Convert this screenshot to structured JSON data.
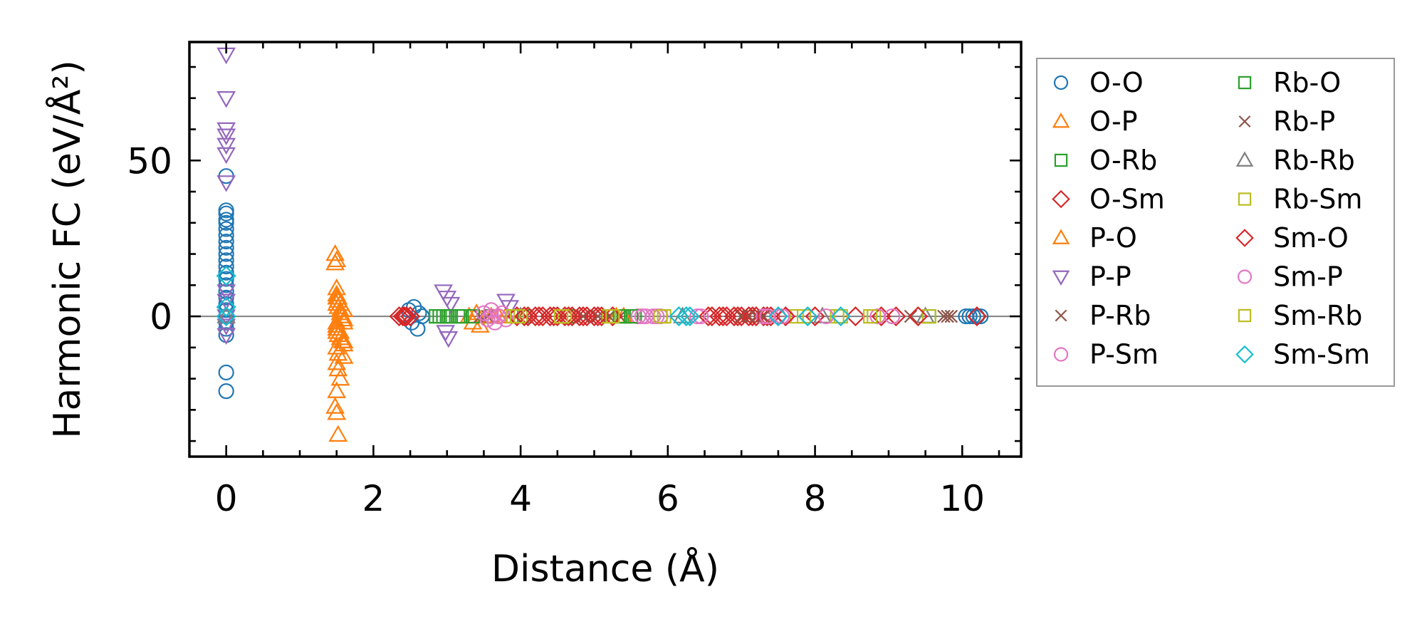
{
  "chart_data": {
    "type": "scatter",
    "title": "",
    "xlabel": "Distance (Å)",
    "ylabel": "Harmonic FC (eV/Å²)",
    "xlim": [
      -0.5,
      10.8
    ],
    "ylim": [
      -45,
      88
    ],
    "xticks": [
      0,
      2,
      4,
      6,
      8,
      10
    ],
    "yticks": [
      0,
      50
    ],
    "xtick_labels": [
      "0",
      "2",
      "4",
      "6",
      "8",
      "10"
    ],
    "ytick_labels": [
      "0",
      "50"
    ],
    "zero_line": true,
    "grid": false,
    "legend_position": "outside-right",
    "series": [
      {
        "name": "O-O",
        "marker": "circle",
        "color": "#1f77b4",
        "x": [
          0,
          0,
          0,
          0,
          0,
          0,
          0,
          0,
          0,
          0,
          0,
          0,
          0,
          0,
          0,
          0,
          0,
          0,
          0,
          0,
          0,
          0,
          0,
          0,
          0,
          2.48,
          2.52,
          2.55,
          2.6,
          2.62,
          2.66,
          10.05,
          10.1,
          10.15,
          10.2,
          10.25
        ],
        "y": [
          45,
          34,
          33,
          31,
          30,
          28,
          26,
          24,
          22,
          20,
          18,
          16,
          14,
          12,
          10,
          8,
          6,
          4,
          2,
          0,
          -2,
          -4,
          -6,
          -18,
          -24,
          2,
          -2,
          3,
          -4,
          1,
          0,
          0,
          0,
          0,
          0,
          0
        ]
      },
      {
        "name": "O-P",
        "marker": "triangle-up",
        "color": "#ff7f0e",
        "x": [
          1.48,
          1.48,
          1.5,
          1.5,
          1.52,
          1.52,
          1.5,
          1.52,
          1.55,
          1.55,
          1.58,
          1.6,
          1.6,
          1.5,
          1.5,
          1.5,
          1.52,
          1.55,
          1.58,
          1.6,
          1.5,
          1.52,
          1.5,
          1.52,
          1.55,
          1.6,
          1.5,
          1.48,
          1.5,
          1.52,
          3.3,
          3.35,
          3.4,
          3.45
        ],
        "y": [
          20,
          17,
          9,
          7,
          6,
          5,
          4,
          3,
          2,
          1,
          0,
          -1,
          -2,
          -3,
          -4,
          -5,
          -6,
          -7,
          -8,
          -9,
          -10,
          -12,
          -15,
          -17,
          -20,
          -13,
          -24,
          -29,
          -31,
          -38,
          0,
          -2,
          1,
          -3
        ]
      },
      {
        "name": "O-Rb",
        "marker": "square",
        "color": "#2ca02c",
        "x": [
          2.85,
          2.95,
          3.05,
          3.2,
          3.35,
          3.6,
          4.05,
          4.65,
          5.4,
          5.55,
          9.55
        ],
        "y": [
          0,
          0,
          0,
          0,
          0,
          0,
          0,
          0,
          0,
          0,
          0
        ]
      },
      {
        "name": "O-Sm",
        "marker": "diamond",
        "color": "#d62728",
        "x": [
          2.35,
          2.42,
          2.5,
          4.1,
          4.2,
          4.3,
          4.4,
          4.5,
          4.6,
          4.7,
          4.8,
          4.9,
          5.0,
          5.1,
          6.6,
          6.7,
          6.8,
          6.9,
          7.0,
          7.1,
          7.2,
          7.3,
          7.4
        ],
        "y": [
          0,
          0,
          0,
          0,
          0,
          0,
          0,
          0,
          0,
          0,
          0,
          0,
          0,
          0,
          0,
          0,
          0,
          0,
          0,
          0,
          0,
          0,
          0
        ]
      },
      {
        "name": "P-O",
        "marker": "triangle-up",
        "color": "#ff7f0e",
        "x": [
          1.5,
          1.5,
          1.55,
          1.6,
          1.5,
          1.55,
          1.6,
          3.6,
          3.7,
          3.8,
          5.3,
          5.4
        ],
        "y": [
          18,
          6,
          4,
          2,
          -2,
          -5,
          -8,
          0,
          0,
          0,
          0,
          0
        ]
      },
      {
        "name": "P-P",
        "marker": "triangle-down",
        "color": "#9467bd",
        "x": [
          0,
          0,
          0,
          0,
          0,
          0,
          0,
          0,
          0,
          0,
          0,
          0,
          2.95,
          3.0,
          3.05,
          2.98,
          3.02,
          3.8,
          3.85
        ],
        "y": [
          84,
          70,
          60,
          58,
          55,
          52,
          43,
          0,
          5,
          8,
          -3,
          -6,
          8,
          6,
          4,
          -5,
          -7,
          5,
          3
        ]
      },
      {
        "name": "P-Rb",
        "marker": "x",
        "color": "#8c564b",
        "x": [
          3.45,
          3.55,
          5.2,
          5.35,
          7.0,
          7.2,
          9.75,
          9.85
        ],
        "y": [
          0,
          0,
          0,
          0,
          0,
          0,
          0,
          0
        ]
      },
      {
        "name": "P-Sm",
        "marker": "circle",
        "color": "#e377c2",
        "x": [
          3.5,
          3.55,
          3.6,
          3.65,
          3.7,
          3.75,
          3.8,
          5.6,
          5.7,
          5.8,
          5.9,
          6.4,
          7.3,
          7.5,
          7.6
        ],
        "y": [
          1,
          -1,
          2,
          -2,
          0,
          1,
          -1,
          0,
          0,
          0,
          0,
          0,
          0,
          0,
          0
        ]
      },
      {
        "name": "Rb-O",
        "marker": "square",
        "color": "#2ca02c",
        "x": [
          2.9,
          3.0,
          3.15,
          5.35,
          5.5
        ],
        "y": [
          0,
          0,
          0,
          0,
          0
        ]
      },
      {
        "name": "Rb-P",
        "marker": "x",
        "color": "#8c564b",
        "x": [
          4.85,
          5.05,
          7.1,
          7.3,
          9.3,
          9.8
        ],
        "y": [
          0,
          0,
          0,
          0,
          0,
          0
        ]
      },
      {
        "name": "Rb-Rb",
        "marker": "triangle-up",
        "color": "#7f7f7f",
        "x": [
          0,
          4.0,
          6.2,
          8.1,
          9.5
        ],
        "y": [
          0,
          0,
          0,
          0,
          0
        ]
      },
      {
        "name": "Rb-Sm",
        "marker": "square",
        "color": "#bcbd22",
        "x": [
          3.9,
          4.0,
          4.6,
          5.2,
          5.9,
          7.75,
          8.3,
          8.8,
          9.55
        ],
        "y": [
          0,
          0,
          0,
          0,
          0,
          0,
          0,
          0,
          0
        ]
      },
      {
        "name": "Sm-O",
        "marker": "diamond",
        "color": "#d62728",
        "x": [
          2.4,
          2.45,
          3.95,
          4.05,
          4.25,
          4.45,
          4.65,
          4.85,
          5.05,
          5.25,
          6.55,
          6.75,
          6.95,
          7.15,
          7.35,
          7.6,
          8.0,
          8.55,
          8.9,
          9.1,
          9.4,
          10.2
        ],
        "y": [
          0,
          0,
          0,
          0,
          0,
          0,
          0,
          0,
          0,
          0,
          0,
          0,
          0,
          0,
          0,
          0,
          0,
          0,
          0,
          0,
          0,
          0
        ]
      },
      {
        "name": "Sm-P",
        "marker": "circle",
        "color": "#e377c2",
        "x": [
          3.6,
          3.7,
          5.65,
          5.85,
          6.45,
          7.35,
          7.55,
          8.15,
          8.85,
          9.05
        ],
        "y": [
          0,
          0,
          0,
          0,
          0,
          0,
          0,
          0,
          0,
          0
        ]
      },
      {
        "name": "Sm-Rb",
        "marker": "square",
        "color": "#bcbd22",
        "x": [
          3.95,
          4.55,
          5.25,
          5.95,
          7.85,
          8.35,
          8.75
        ],
        "y": [
          0,
          0,
          0,
          0,
          0,
          0,
          0
        ]
      },
      {
        "name": "Sm-Sm",
        "marker": "diamond",
        "color": "#17becf",
        "x": [
          0,
          0,
          0,
          6.15,
          6.25,
          6.3,
          7.5,
          7.9,
          8.35
        ],
        "y": [
          13,
          3,
          0,
          0,
          0,
          0,
          0,
          0,
          0
        ]
      }
    ]
  }
}
